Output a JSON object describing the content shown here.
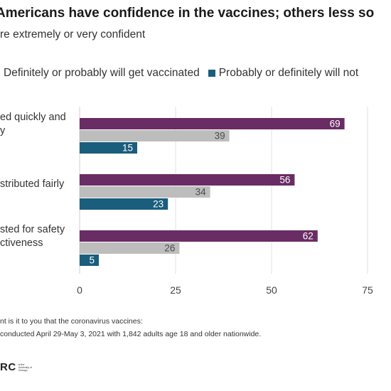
{
  "title": "Americans have confidence in the vaccines; others less so",
  "subtitle": "re extremely or very confident",
  "colors": {
    "will_get": "#6a2c64",
    "grey": "#bdbdbd",
    "will_not": "#1a5d7c"
  },
  "legend": [
    {
      "label": "Definitely or probably will get vaccinated",
      "color": "#bdbdbd"
    },
    {
      "label": "Probably or definitely will not",
      "color": "#1a5d7c"
    }
  ],
  "footnotes": [
    "nt is it to you that the coronavirus vaccines:",
    "conducted April 29-May 3, 2021 with 1,842 adults age 18 and older nationwide."
  ],
  "logo": {
    "mark": "RC",
    "sub": "at the University of Chicago"
  },
  "chart_data": {
    "type": "bar",
    "orientation": "horizontal",
    "categories": [
      [
        "ed quickly and",
        "y"
      ],
      [
        "stributed fairly"
      ],
      [
        "sted for safety",
        "ctiveness"
      ]
    ],
    "series": [
      {
        "values": [
          69,
          56,
          62
        ],
        "color": "#6a2c64"
      },
      {
        "name": "Definitely or probably will get vaccinated",
        "values": [
          39,
          34,
          26
        ],
        "color": "#bdbdbd"
      },
      {
        "name": "Probably or definitely will not",
        "values": [
          15,
          23,
          5
        ],
        "color": "#1a5d7c"
      }
    ],
    "xticks": [
      0,
      25,
      50,
      75
    ],
    "xlim": [
      0,
      75
    ],
    "grid": true
  }
}
